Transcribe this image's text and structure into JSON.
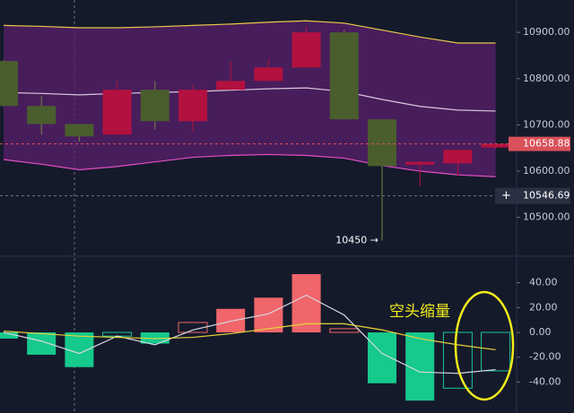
{
  "chart_data": [
    {
      "type": "candlestick",
      "open": [
        10838,
        10741,
        10702,
        10679,
        10776,
        10708,
        10776,
        10795,
        10824,
        10900,
        10712,
        10614,
        10617,
        10651
      ],
      "high": [
        10840,
        10762,
        10702,
        10795,
        10795,
        10786,
        10837,
        10843,
        10912,
        10905,
        10712,
        10622,
        10646,
        10662
      ],
      "low": [
        10740,
        10679,
        10664,
        10679,
        10690,
        10686,
        10776,
        10795,
        10824,
        10712,
        10450,
        10567,
        10590,
        10648
      ],
      "close": [
        10741,
        10702,
        10675,
        10776,
        10708,
        10776,
        10795,
        10824,
        10900,
        10712,
        10611,
        10620,
        10646,
        10659
      ],
      "up_color": "#b3113f",
      "down_color": "#4a5e2d",
      "series": [
        {
          "color": "#e8c84a",
          "values": [
            10915,
            10913,
            10910,
            10910,
            10912,
            10915,
            10918,
            10922,
            10925,
            10920,
            10905,
            10890,
            10877,
            10877
          ]
        },
        {
          "color": "#d9c6dc",
          "values": [
            10770,
            10768,
            10765,
            10768,
            10770,
            10772,
            10775,
            10778,
            10780,
            10772,
            10755,
            10740,
            10732,
            10730
          ]
        },
        {
          "color": "#e24fc4",
          "values": [
            10625,
            10615,
            10603,
            10610,
            10620,
            10630,
            10634,
            10636,
            10634,
            10628,
            10612,
            10600,
            10592,
            10588
          ]
        }
      ],
      "band_fill": "#5a1f6e",
      "ylim": [
        10418,
        10970
      ],
      "yticks": [
        {
          "value": 10900,
          "label": "10900.00"
        },
        {
          "value": 10800,
          "label": "10800.00"
        },
        {
          "value": 10700,
          "label": "10700.00"
        },
        {
          "value": 10600,
          "label": "10600.00"
        },
        {
          "value": 10500,
          "label": "10500.00"
        }
      ],
      "last_price": 10658.88,
      "crosshair_price": 10546.69,
      "low_annotation": "10450 →"
    },
    {
      "type": "bar",
      "values": [
        -5,
        -18,
        -28,
        -3,
        -9,
        8,
        19,
        28,
        47,
        3,
        -41,
        -55,
        -45,
        -31
      ],
      "up_color": "#f0666a",
      "down_color": "#16c98d",
      "series": [
        {
          "color": "#d8d8e0",
          "values": [
            0,
            -7,
            -17,
            -3,
            -10,
            2,
            9,
            15,
            30,
            14,
            -17,
            -32,
            -33,
            -30
          ]
        },
        {
          "color": "#e6d23a",
          "values": [
            1,
            -1,
            -3,
            -4,
            -5,
            -4,
            -1,
            3,
            7,
            7,
            2,
            -5,
            -10,
            -14
          ]
        }
      ],
      "ylim": [
        -65,
        60
      ],
      "yticks": [
        {
          "value": 40,
          "label": "40.00"
        },
        {
          "value": 20,
          "label": "20.00"
        },
        {
          "value": 0,
          "label": "0.00"
        },
        {
          "value": -20,
          "label": "-20.00"
        },
        {
          "value": -40,
          "label": "-40.00"
        }
      ],
      "annotation": "空头缩量"
    }
  ]
}
